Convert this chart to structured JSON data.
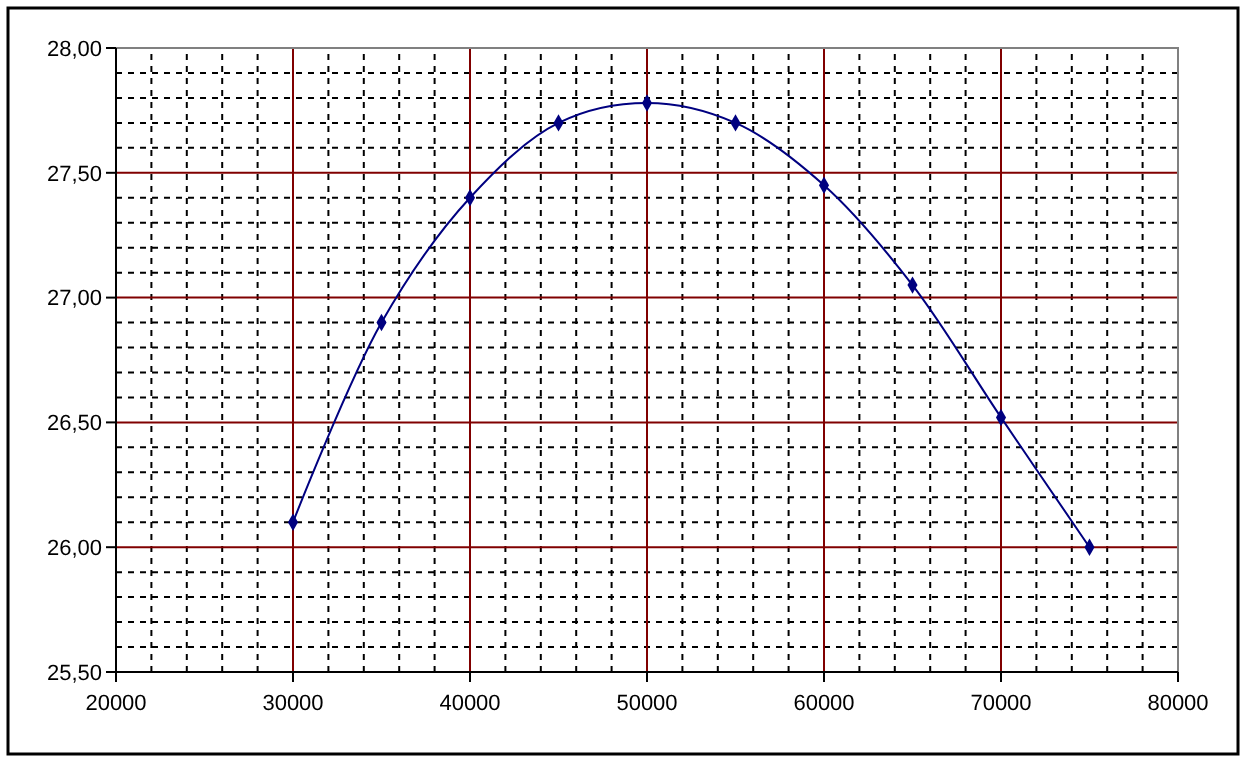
{
  "chart_data": {
    "type": "line",
    "x": [
      30000,
      35000,
      40000,
      45000,
      50000,
      55000,
      60000,
      65000,
      70000,
      75000
    ],
    "series": [
      {
        "color": "#000080",
        "values": [
          26.1,
          26.9,
          27.4,
          27.7,
          27.78,
          27.7,
          27.45,
          27.05,
          26.52,
          26.0
        ]
      }
    ],
    "xlim": [
      20000,
      80000
    ],
    "xticks": [
      20000,
      30000,
      40000,
      50000,
      60000,
      70000,
      80000
    ],
    "ylim": [
      25.5,
      28
    ],
    "yticks": [
      {
        "value": 25.5,
        "label": "25,50"
      },
      {
        "value": 26,
        "label": "26,00"
      },
      {
        "value": 26.5,
        "label": "26,50"
      },
      {
        "value": 27,
        "label": "27,00"
      },
      {
        "value": 27.5,
        "label": "27,50"
      },
      {
        "value": 28,
        "label": "28,00"
      }
    ],
    "grid": true,
    "marker": "diamond",
    "line_style": "solid"
  }
}
